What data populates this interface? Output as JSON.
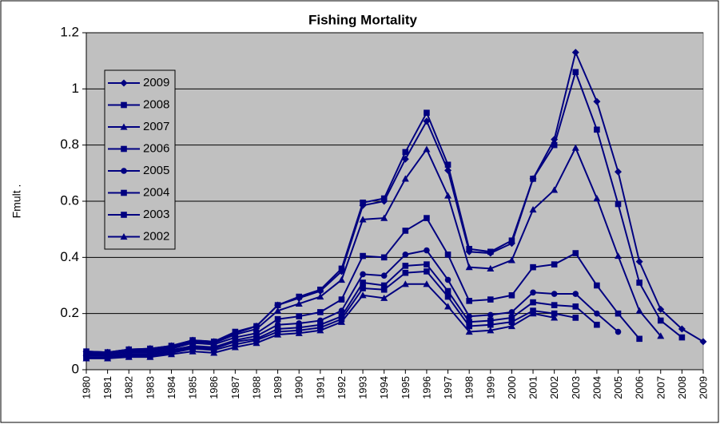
{
  "chart_data": {
    "type": "line",
    "title": "Fishing Mortality",
    "y_label": "Fmult .",
    "categories": [
      "1980",
      "1981",
      "1982",
      "1983",
      "1984",
      "1985",
      "1986",
      "1987",
      "1988",
      "1989",
      "1990",
      "1991",
      "1992",
      "1993",
      "1994",
      "1995",
      "1996",
      "1997",
      "1998",
      "1999",
      "2000",
      "2001",
      "2002",
      "2003",
      "2004",
      "2005",
      "2006",
      "2007",
      "2008",
      "2009"
    ],
    "ylim": [
      0,
      1.2
    ],
    "yticks": [
      0,
      0.2,
      0.4,
      0.6,
      0.8,
      1,
      1.2
    ],
    "grid": true,
    "legend": "upper-left",
    "series": [
      {
        "name": "2009",
        "color": "#000080",
        "marker": "diamond",
        "values": [
          0.065,
          0.062,
          0.072,
          0.075,
          0.085,
          0.105,
          0.1,
          0.13,
          0.155,
          0.23,
          0.255,
          0.28,
          0.35,
          0.585,
          0.6,
          0.75,
          0.885,
          0.71,
          0.42,
          0.415,
          0.45,
          0.68,
          0.82,
          1.13,
          0.955,
          0.705,
          0.385,
          0.215,
          0.145,
          0.1
        ]
      },
      {
        "name": "2008",
        "color": "#000080",
        "marker": "square",
        "values": [
          0.065,
          0.062,
          0.072,
          0.075,
          0.085,
          0.105,
          0.1,
          0.135,
          0.155,
          0.23,
          0.26,
          0.285,
          0.36,
          0.595,
          0.61,
          0.775,
          0.915,
          0.73,
          0.43,
          0.42,
          0.46,
          0.68,
          0.8,
          1.06,
          0.855,
          0.59,
          0.31,
          0.175,
          0.115,
          null
        ]
      },
      {
        "name": "2007",
        "color": "#000080",
        "marker": "triangle",
        "values": [
          0.06,
          0.058,
          0.068,
          0.07,
          0.08,
          0.1,
          0.095,
          0.125,
          0.145,
          0.21,
          0.235,
          0.26,
          0.32,
          0.535,
          0.54,
          0.68,
          0.785,
          0.62,
          0.365,
          0.36,
          0.39,
          0.57,
          0.64,
          0.79,
          0.61,
          0.405,
          0.21,
          0.12,
          null,
          null
        ]
      },
      {
        "name": "2006",
        "color": "#000080",
        "marker": "square",
        "values": [
          0.055,
          0.055,
          0.065,
          0.065,
          0.075,
          0.095,
          0.09,
          0.115,
          0.13,
          0.18,
          0.19,
          0.205,
          0.25,
          0.405,
          0.4,
          0.495,
          0.54,
          0.41,
          0.245,
          0.25,
          0.265,
          0.365,
          0.375,
          0.415,
          0.3,
          0.2,
          0.11,
          null,
          null,
          null
        ]
      },
      {
        "name": "2005",
        "color": "#000080",
        "marker": "circle",
        "values": [
          0.05,
          0.05,
          0.06,
          0.06,
          0.07,
          0.085,
          0.08,
          0.105,
          0.12,
          0.16,
          0.165,
          0.175,
          0.21,
          0.34,
          0.335,
          0.41,
          0.425,
          0.32,
          0.19,
          0.195,
          0.205,
          0.275,
          0.27,
          0.27,
          0.2,
          0.135,
          null,
          null,
          null,
          null
        ]
      },
      {
        "name": "2004",
        "color": "#000080",
        "marker": "square",
        "values": [
          0.045,
          0.045,
          0.055,
          0.055,
          0.065,
          0.08,
          0.075,
          0.1,
          0.11,
          0.145,
          0.15,
          0.16,
          0.19,
          0.31,
          0.3,
          0.37,
          0.375,
          0.28,
          0.17,
          0.175,
          0.185,
          0.24,
          0.23,
          0.225,
          0.16,
          null,
          null,
          null,
          null,
          null
        ]
      },
      {
        "name": "2003",
        "color": "#000080",
        "marker": "square",
        "values": [
          0.042,
          0.042,
          0.05,
          0.05,
          0.06,
          0.075,
          0.07,
          0.09,
          0.105,
          0.135,
          0.14,
          0.15,
          0.18,
          0.29,
          0.285,
          0.345,
          0.35,
          0.26,
          0.155,
          0.16,
          0.17,
          0.21,
          0.2,
          0.185,
          null,
          null,
          null,
          null,
          null,
          null
        ]
      },
      {
        "name": "2002",
        "color": "#000080",
        "marker": "triangle",
        "values": [
          0.04,
          0.04,
          0.045,
          0.045,
          0.055,
          0.065,
          0.06,
          0.08,
          0.095,
          0.125,
          0.13,
          0.14,
          0.17,
          0.265,
          0.255,
          0.305,
          0.305,
          0.225,
          0.135,
          0.14,
          0.155,
          0.2,
          0.185,
          null,
          null,
          null,
          null,
          null,
          null,
          null
        ]
      }
    ]
  }
}
